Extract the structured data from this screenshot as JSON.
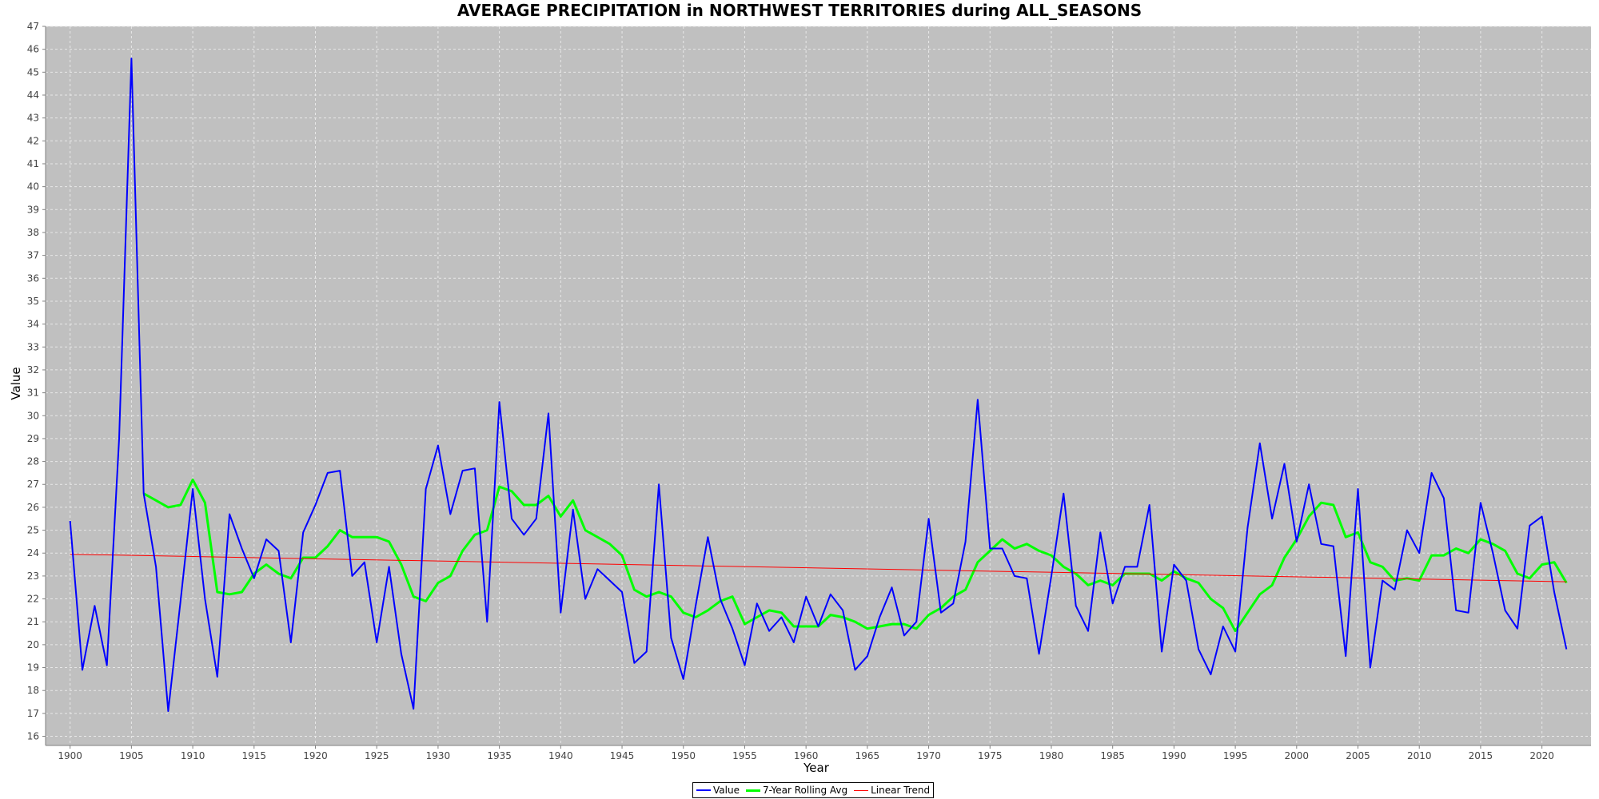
{
  "chart_data": {
    "type": "line",
    "title": "AVERAGE PRECIPITATION in NORTHWEST TERRITORIES during ALL_SEASONS",
    "xlabel": "Year",
    "ylabel": "Value",
    "xlim": [
      1898,
      2024
    ],
    "ylim": [
      15.6,
      47
    ],
    "x_ticks": [
      1900,
      1905,
      1910,
      1915,
      1920,
      1925,
      1930,
      1935,
      1940,
      1945,
      1950,
      1955,
      1960,
      1965,
      1970,
      1975,
      1980,
      1985,
      1990,
      1995,
      2000,
      2005,
      2010,
      2015,
      2020
    ],
    "y_ticks": [
      16,
      17,
      18,
      19,
      20,
      21,
      22,
      23,
      24,
      25,
      26,
      27,
      28,
      29,
      30,
      31,
      32,
      33,
      34,
      35,
      36,
      37,
      38,
      39,
      40,
      41,
      42,
      43,
      44,
      45,
      46,
      47
    ],
    "grid": true,
    "legend_position": "bottom-center",
    "colors": {
      "plot_bg": "#c0c0c0",
      "grid": "#e8e8e8",
      "axis": "#808080"
    },
    "series": [
      {
        "name": "Value",
        "color": "#0000ff",
        "x_start": 1900,
        "values": [
          25.4,
          18.9,
          21.7,
          19.1,
          29.0,
          45.6,
          26.6,
          23.4,
          17.1,
          21.9,
          26.8,
          22.0,
          18.6,
          25.7,
          24.2,
          22.9,
          24.6,
          24.1,
          20.1,
          24.9,
          26.1,
          27.5,
          27.6,
          23.0,
          23.6,
          20.1,
          23.4,
          19.6,
          17.2,
          26.8,
          28.7,
          25.7,
          27.6,
          27.7,
          21.0,
          30.6,
          25.5,
          24.8,
          25.5,
          30.1,
          21.4,
          25.9,
          22.0,
          23.3,
          22.8,
          22.3,
          19.2,
          19.7,
          27.0,
          20.3,
          18.5,
          21.7,
          24.7,
          22.0,
          20.7,
          19.1,
          21.8,
          20.6,
          21.2,
          20.1,
          22.1,
          20.8,
          22.2,
          21.5,
          18.9,
          19.5,
          21.2,
          22.5,
          20.4,
          21.0,
          25.5,
          21.4,
          21.8,
          24.5,
          30.7,
          24.2,
          24.2,
          23.0,
          22.9,
          19.6,
          23.0,
          26.6,
          21.7,
          20.6,
          24.9,
          21.8,
          23.4,
          23.4,
          26.1,
          19.7,
          23.5,
          22.8,
          19.8,
          18.7,
          20.8,
          19.7,
          25.1,
          28.8,
          25.5,
          27.9,
          24.5,
          27.0,
          24.4,
          24.3,
          19.5,
          26.8,
          19.0,
          22.8,
          22.4,
          25.0,
          24.0,
          27.5,
          26.4,
          21.5,
          21.4,
          26.2,
          24.0,
          21.5,
          20.7,
          25.2,
          25.6,
          22.3,
          19.8
        ]
      },
      {
        "name": "7-Year Rolling Avg",
        "color": "#00ff00",
        "x_start": 1906,
        "values": [
          26.6,
          26.3,
          26.0,
          26.1,
          27.2,
          26.2,
          22.3,
          22.2,
          22.3,
          23.1,
          23.5,
          23.1,
          22.9,
          23.8,
          23.8,
          24.3,
          25.0,
          24.7,
          24.7,
          24.7,
          24.5,
          23.5,
          22.1,
          21.9,
          22.7,
          23.0,
          24.1,
          24.8,
          25.0,
          26.9,
          26.7,
          26.1,
          26.1,
          26.5,
          25.6,
          26.3,
          25.0,
          24.7,
          24.4,
          23.9,
          22.4,
          22.1,
          22.3,
          22.1,
          21.4,
          21.2,
          21.5,
          21.9,
          22.1,
          20.9,
          21.2,
          21.5,
          21.4,
          20.8,
          20.8,
          20.8,
          21.3,
          21.2,
          21.0,
          20.7,
          20.8,
          20.9,
          20.9,
          20.7,
          21.3,
          21.6,
          22.1,
          22.4,
          23.6,
          24.1,
          24.6,
          24.2,
          24.4,
          24.1,
          23.9,
          23.4,
          23.1,
          22.6,
          22.8,
          22.6,
          23.1,
          23.1,
          23.1,
          22.8,
          23.2,
          22.9,
          22.7,
          22.0,
          21.6,
          20.6,
          21.4,
          22.2,
          22.6,
          23.8,
          24.6,
          25.6,
          26.2,
          26.1,
          24.7,
          24.9,
          23.6,
          23.4,
          22.8,
          22.9,
          22.8,
          23.9,
          23.9,
          24.2,
          24.0,
          24.6,
          24.4,
          24.1,
          23.1,
          22.9,
          23.5,
          23.6,
          22.7
        ]
      },
      {
        "name": "Linear Trend",
        "color": "#ff0000",
        "x": [
          1900,
          2022
        ],
        "values": [
          23.95,
          22.75
        ]
      }
    ]
  }
}
